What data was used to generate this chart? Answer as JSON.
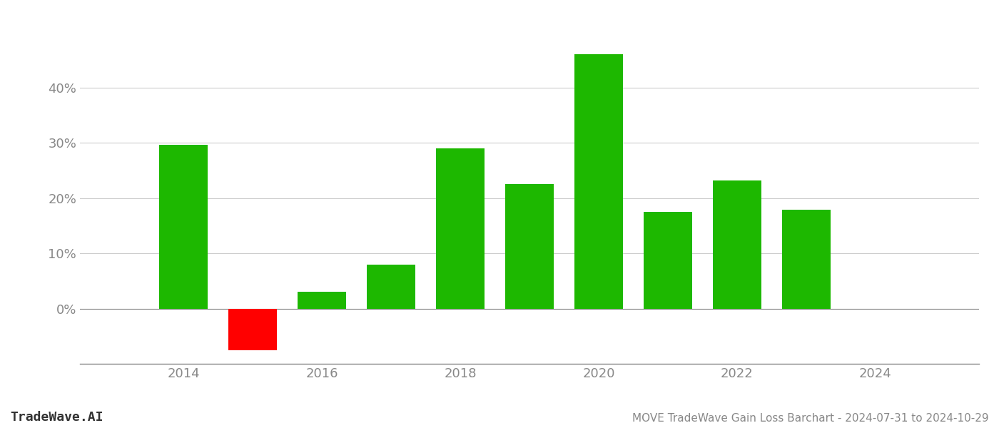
{
  "years": [
    2014,
    2015,
    2016,
    2017,
    2018,
    2019,
    2020,
    2021,
    2022,
    2023
  ],
  "values": [
    0.296,
    -0.075,
    0.03,
    0.079,
    0.29,
    0.225,
    0.46,
    0.175,
    0.232,
    0.179
  ],
  "bar_colors": [
    "#1db800",
    "#ff0000",
    "#1db800",
    "#1db800",
    "#1db800",
    "#1db800",
    "#1db800",
    "#1db800",
    "#1db800",
    "#1db800"
  ],
  "title": "MOVE TradeWave Gain Loss Barchart - 2024-07-31 to 2024-10-29",
  "watermark": "TradeWave.AI",
  "xlim": [
    2012.5,
    2025.5
  ],
  "ylim": [
    -0.1,
    0.52
  ],
  "yticks": [
    0.0,
    0.1,
    0.2,
    0.3,
    0.4
  ],
  "xtick_positions": [
    2014,
    2016,
    2018,
    2020,
    2022,
    2024
  ],
  "background_color": "#ffffff",
  "grid_color": "#cccccc",
  "bar_width": 0.7,
  "tick_fontsize": 13,
  "label_fontsize": 11,
  "watermark_fontsize": 13
}
